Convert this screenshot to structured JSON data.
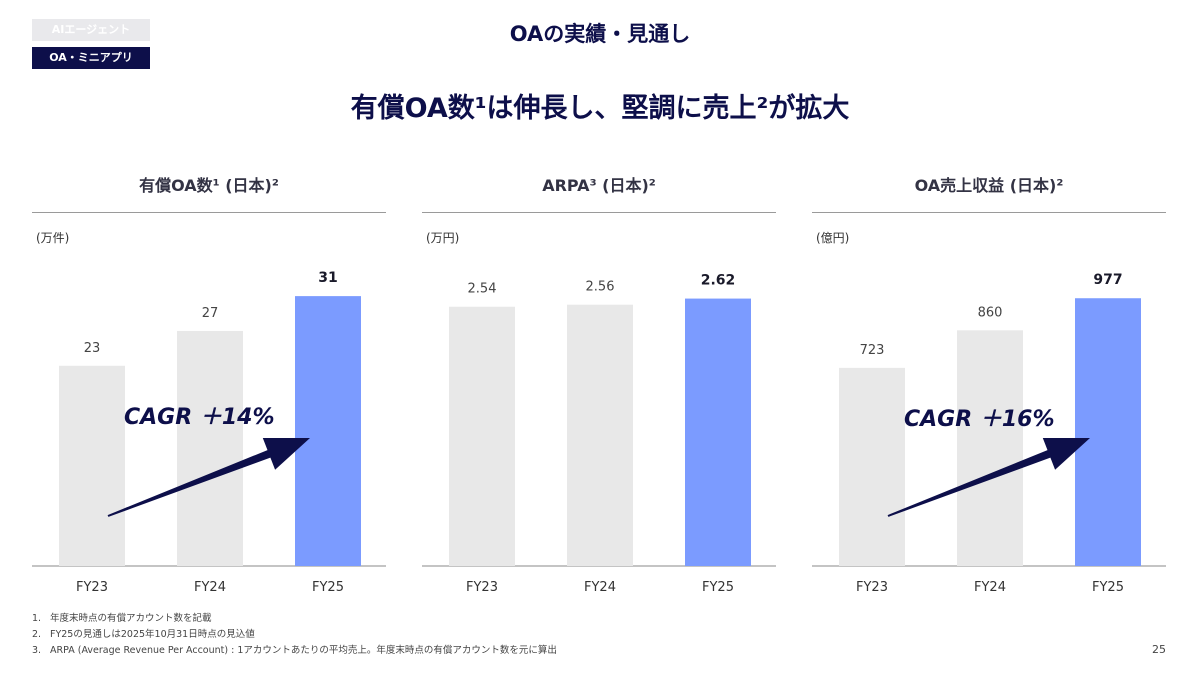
{
  "tags": [
    "AIエージェント",
    "OA・ミニアプリ"
  ],
  "page_title": "OAの実績・見通し",
  "headline": "有償OA数¹は伸長し、堅調に売上²が拡大",
  "chart_data": [
    {
      "type": "bar",
      "title": "有償OA数¹ (日本)²",
      "unit": "(万件)",
      "categories": [
        "FY23",
        "FY24",
        "FY25"
      ],
      "values": [
        23,
        27,
        31
      ],
      "value_labels": [
        "23",
        "27",
        "31"
      ],
      "ylim": [
        0,
        34
      ],
      "highlight_index": 2,
      "cagr": "CAGR ＋14%"
    },
    {
      "type": "bar",
      "title": "ARPA³ (日本)²",
      "unit": "(万円)",
      "categories": [
        "FY23",
        "FY24",
        "FY25"
      ],
      "values": [
        2.54,
        2.56,
        2.62
      ],
      "value_labels": [
        "2.54",
        "2.56",
        "2.62"
      ],
      "ylim": [
        0,
        2.9
      ],
      "highlight_index": 2
    },
    {
      "type": "bar",
      "title": "OA売上収益 (日本)²",
      "unit": "(億円)",
      "categories": [
        "FY23",
        "FY24",
        "FY25"
      ],
      "values": [
        723,
        860,
        977
      ],
      "value_labels": [
        "723",
        "860",
        "977"
      ],
      "ylim": [
        0,
        1080
      ],
      "highlight_index": 2,
      "cagr": "CAGR ＋16%"
    }
  ],
  "footnotes": [
    {
      "num": "1.",
      "text": "年度末時点の有償アカウント数を記載"
    },
    {
      "num": "2.",
      "text": "FY25の見通しは2025年10月31日時点の見込値"
    },
    {
      "num": "3.",
      "text": "ARPA (Average Revenue Per Account) : 1アカウントあたりの平均売上。年度末時点の有償アカウント数を元に算出"
    }
  ],
  "page_number": "25",
  "colors": {
    "navy": "#0d0f4a",
    "bar_gray": "#e8e8e8",
    "bar_highlight": "#7b9bff",
    "text_dark": "#333344"
  }
}
